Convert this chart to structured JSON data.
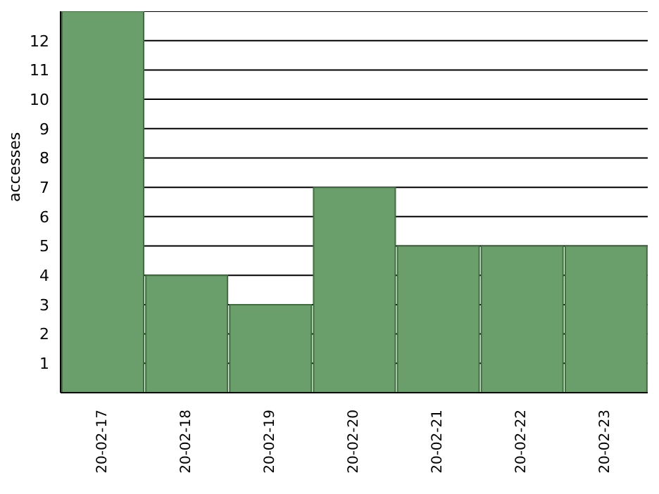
{
  "chart_data": {
    "type": "bar",
    "ylabel": "accesses",
    "categories": [
      "20-02-17",
      "20-02-18",
      "20-02-19",
      "20-02-20",
      "20-02-21",
      "20-02-22",
      "20-02-23"
    ],
    "values": [
      13,
      4,
      3,
      7,
      5,
      5,
      5
    ],
    "color": "#6a9e6a",
    "ylim": [
      0,
      13
    ],
    "yticks": [
      1,
      2,
      3,
      4,
      5,
      6,
      7,
      8,
      9,
      10,
      11,
      12
    ],
    "grid": "y"
  }
}
